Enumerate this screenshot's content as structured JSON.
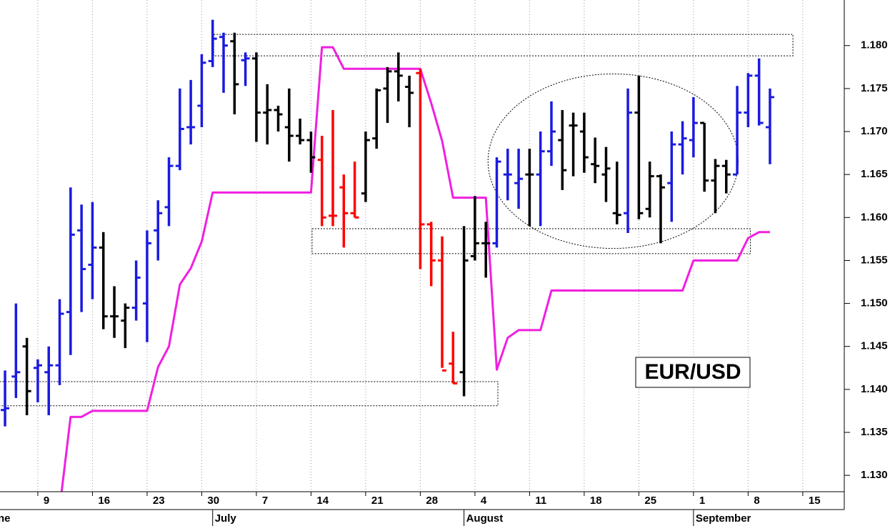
{
  "chart_data": {
    "type": "ohlc",
    "annotation": "EUR/USD",
    "x": [
      -3,
      -2,
      -1,
      0,
      1,
      2,
      3,
      4,
      5,
      6,
      7,
      8,
      9,
      10,
      11,
      12,
      13,
      14,
      15,
      16,
      17,
      18,
      19,
      20,
      21,
      22,
      23,
      24,
      25,
      26,
      27,
      28,
      29,
      30,
      31,
      32,
      33,
      34,
      35,
      36,
      37,
      38,
      39,
      40,
      41,
      42,
      43,
      44,
      45,
      46,
      47,
      48,
      49,
      50,
      51,
      52,
      53,
      54,
      55,
      56,
      57,
      58,
      59,
      60,
      61,
      62,
      63,
      64,
      65,
      66,
      67
    ],
    "xlim": [
      -3.46,
      73.8
    ],
    "xticks": [
      {
        "value": 0,
        "label": "9"
      },
      {
        "value": 5,
        "label": "16"
      },
      {
        "value": 10,
        "label": "23"
      },
      {
        "value": 15,
        "label": "30"
      },
      {
        "value": 20,
        "label": "7"
      },
      {
        "value": 25,
        "label": "14"
      },
      {
        "value": 30,
        "label": "21"
      },
      {
        "value": 35,
        "label": "28"
      },
      {
        "value": 40,
        "label": "4"
      },
      {
        "value": 45,
        "label": "11"
      },
      {
        "value": 50,
        "label": "18"
      },
      {
        "value": 55,
        "label": "25"
      },
      {
        "value": 60,
        "label": "1"
      },
      {
        "value": 65,
        "label": "8"
      },
      {
        "value": 70,
        "label": "15"
      }
    ],
    "month_labels": [
      {
        "value": -5,
        "label": "June"
      },
      {
        "value": 16,
        "label": "July"
      },
      {
        "value": 39,
        "label": "August"
      },
      {
        "value": 60,
        "label": "September"
      }
    ],
    "grid": true,
    "ylim": [
      1.1281,
      1.1853
    ],
    "yticks": [
      {
        "value": 1.13,
        "label": "1.130"
      },
      1.135,
      {
        "value": 1.14,
        "label": "1.140"
      },
      1.145,
      {
        "value": 1.15,
        "label": "1.150"
      },
      1.155,
      {
        "value": 1.16,
        "label": "1.160"
      },
      1.165,
      {
        "value": 1.17,
        "label": "1.170"
      },
      1.175,
      {
        "value": 1.18,
        "label": "1.180"
      }
    ],
    "ohlc": {
      "open": [
        1.1376,
        1.1415,
        1.145,
        1.1425,
        1.142,
        1.1428,
        1.149,
        1.1585,
        1.1545,
        1.1565,
        1.1485,
        1.148,
        1.1495,
        1.15,
        1.1585,
        1.1612,
        1.166,
        1.1705,
        1.173,
        1.1782,
        1.181,
        1.1805,
        1.1783,
        1.1785,
        1.1722,
        1.1725,
        1.1705,
        1.1695,
        1.169,
        1.1667,
        1.1602,
        1.1635,
        1.1605,
        1.1628,
        1.1692,
        1.175,
        1.177,
        1.1752,
        1.1768,
        1.1592,
        1.155,
        1.143,
        1.142,
        1.1555,
        1.157,
        1.157,
        1.165,
        1.164,
        1.165,
        1.165,
        1.1677,
        1.169,
        1.1707,
        1.17,
        1.1662,
        1.165,
        1.1605,
        1.1605,
        1.1722,
        1.161,
        1.1648,
        1.164,
        1.1685,
        1.169,
        1.171,
        1.1643,
        1.166,
        1.165,
        1.1722,
        1.1765,
        1.1705
      ],
      "high": [
        1.1422,
        1.15,
        1.146,
        1.1435,
        1.145,
        1.1505,
        1.1635,
        1.1615,
        1.1618,
        1.1583,
        1.152,
        1.15,
        1.155,
        1.1585,
        1.162,
        1.167,
        1.175,
        1.176,
        1.179,
        1.183,
        1.1815,
        1.1815,
        1.1792,
        1.1792,
        1.1755,
        1.173,
        1.175,
        1.1715,
        1.17,
        1.1695,
        1.1725,
        1.165,
        1.1665,
        1.17,
        1.175,
        1.1775,
        1.1792,
        1.1765,
        1.1773,
        1.1595,
        1.1578,
        1.1467,
        1.159,
        1.1625,
        1.1595,
        1.167,
        1.168,
        1.168,
        1.168,
        1.17,
        1.1735,
        1.1725,
        1.1722,
        1.1722,
        1.1693,
        1.1682,
        1.1665,
        1.175,
        1.1765,
        1.1665,
        1.165,
        1.17,
        1.1712,
        1.174,
        1.171,
        1.1668,
        1.1667,
        1.1753,
        1.1768,
        1.1785,
        1.175
      ],
      "low": [
        1.1357,
        1.139,
        1.137,
        1.1385,
        1.137,
        1.1405,
        1.144,
        1.149,
        1.1505,
        1.147,
        1.146,
        1.1448,
        1.148,
        1.1455,
        1.155,
        1.159,
        1.1655,
        1.1685,
        1.1705,
        1.1775,
        1.1745,
        1.172,
        1.1753,
        1.1688,
        1.1685,
        1.17,
        1.1665,
        1.1685,
        1.1652,
        1.159,
        1.159,
        1.1565,
        1.16,
        1.1618,
        1.168,
        1.171,
        1.1735,
        1.1705,
        1.154,
        1.152,
        1.1425,
        1.1407,
        1.1392,
        1.155,
        1.153,
        1.1565,
        1.162,
        1.161,
        1.159,
        1.159,
        1.166,
        1.1632,
        1.1648,
        1.1652,
        1.164,
        1.1618,
        1.1592,
        1.1582,
        1.1598,
        1.16,
        1.157,
        1.1595,
        1.165,
        1.167,
        1.163,
        1.1605,
        1.1628,
        1.165,
        1.1705,
        1.1707,
        1.1662
      ],
      "close": [
        1.1378,
        1.142,
        1.1398,
        1.1428,
        1.1428,
        1.1488,
        1.158,
        1.154,
        1.1565,
        1.1485,
        1.1485,
        1.1495,
        1.153,
        1.157,
        1.1605,
        1.166,
        1.1703,
        1.1705,
        1.178,
        1.1808,
        1.18,
        1.1755,
        1.1785,
        1.1722,
        1.1725,
        1.172,
        1.1695,
        1.169,
        1.167,
        1.16,
        1.1602,
        1.1605,
        1.16,
        1.169,
        1.1748,
        1.177,
        1.1765,
        1.1745,
        1.1592,
        1.155,
        1.1422,
        1.1407,
        1.155,
        1.157,
        1.157,
        1.1665,
        1.165,
        1.1645,
        1.165,
        1.1677,
        1.17,
        1.1655,
        1.1707,
        1.167,
        1.166,
        1.1657,
        1.1603,
        1.1722,
        1.1605,
        1.1648,
        1.1635,
        1.1685,
        1.1692,
        1.171,
        1.1643,
        1.166,
        1.165,
        1.1722,
        1.1765,
        1.171,
        1.174
      ],
      "colors": [
        "#1a1ae0",
        "#1a1ae0",
        "#000000",
        "#1a1ae0",
        "#1a1ae0",
        "#1a1ae0",
        "#1a1ae0",
        "#1a1ae0",
        "#1a1ae0",
        "#000000",
        "#000000",
        "#000000",
        "#1a1ae0",
        "#1a1ae0",
        "#1a1ae0",
        "#1a1ae0",
        "#1a1ae0",
        "#1a1ae0",
        "#1a1ae0",
        "#1a1ae0",
        "#1a1ae0",
        "#000000",
        "#1a1ae0",
        "#000000",
        "#000000",
        "#000000",
        "#000000",
        "#000000",
        "#000000",
        "#ff0000",
        "#ff0000",
        "#ff0000",
        "#ff0000",
        "#000000",
        "#000000",
        "#000000",
        "#000000",
        "#000000",
        "#ff0000",
        "#ff0000",
        "#ff0000",
        "#ff0000",
        "#000000",
        "#000000",
        "#000000",
        "#1a1ae0",
        "#1a1ae0",
        "#1a1ae0",
        "#000000",
        "#1a1ae0",
        "#1a1ae0",
        "#000000",
        "#000000",
        "#000000",
        "#000000",
        "#000000",
        "#000000",
        "#1a1ae0",
        "#000000",
        "#000000",
        "#000000",
        "#1a1ae0",
        "#1a1ae0",
        "#1a1ae0",
        "#000000",
        "#000000",
        "#000000",
        "#1a1ae0",
        "#1a1ae0",
        "#1a1ae0",
        "#1a1ae0"
      ]
    },
    "series": [
      {
        "color": "#f01fe0",
        "values": [
          null,
          null,
          null,
          null,
          null,
          1.1262,
          1.1368,
          1.1368,
          1.1375,
          1.1375,
          1.1375,
          1.1375,
          1.1375,
          1.1375,
          1.1426,
          1.145,
          1.1522,
          1.1541,
          1.1572,
          1.1629,
          1.1629,
          1.1629,
          1.1629,
          1.1629,
          1.1629,
          1.1629,
          1.1629,
          1.1629,
          1.1629,
          1.1798,
          1.1798,
          1.1773,
          1.1773,
          1.1773,
          1.1773,
          1.1773,
          1.1773,
          1.1773,
          1.1773,
          1.1733,
          1.1689,
          1.1623,
          1.1623,
          1.1623,
          1.1623,
          1.1423,
          1.146,
          1.1469,
          1.1469,
          1.1469,
          1.1515,
          1.1515,
          1.1515,
          1.1515,
          1.1515,
          1.1515,
          1.1515,
          1.1515,
          1.1515,
          1.1515,
          1.1515,
          1.1515,
          1.1515,
          1.155,
          1.155,
          1.155,
          1.155,
          1.155,
          1.1576,
          1.1583,
          1.1583
        ]
      }
    ],
    "zones": [
      {
        "x": [
          16.1,
          69.1
        ],
        "y": [
          1.1788,
          1.1813
        ]
      },
      {
        "x": [
          25.1,
          65.2
        ],
        "y": [
          1.1558,
          1.1587
        ]
      },
      {
        "x": [
          -3.5,
          42.1
        ],
        "y": [
          1.1381,
          1.1409
        ]
      }
    ],
    "ellipse": {
      "x": [
        41.2,
        64.1
      ],
      "y": [
        1.1564,
        1.1767
      ]
    }
  }
}
